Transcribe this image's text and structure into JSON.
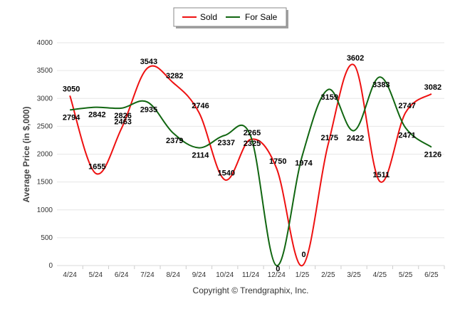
{
  "chart_data": {
    "type": "line",
    "ylabel": "Average Price (in $,000)",
    "ylim": [
      0,
      4000
    ],
    "yticks": [
      0,
      500,
      1000,
      1500,
      2000,
      2500,
      3000,
      3500,
      4000
    ],
    "categories": [
      "4/24",
      "5/24",
      "6/24",
      "7/24",
      "8/24",
      "9/24",
      "10/24",
      "11/24",
      "12/24",
      "1/25",
      "2/25",
      "3/25",
      "4/25",
      "5/25",
      "6/25"
    ],
    "series": [
      {
        "name": "Sold",
        "color": "#ee1111",
        "values": [
          3050,
          1655,
          2463,
          3543,
          3282,
          2746,
          1540,
          2265,
          1750,
          0,
          2175,
          3602,
          1511,
          2747,
          3082
        ]
      },
      {
        "name": "For Sale",
        "color": "#116611",
        "values": [
          2794,
          2842,
          2826,
          2935,
          2379,
          2114,
          2337,
          2325,
          0,
          1974,
          3159,
          2422,
          3383,
          2471,
          2126
        ]
      }
    ],
    "legend_position": "top-center",
    "grid": true
  },
  "footer": {
    "copyright": "Copyright © Trendgraphix, Inc."
  }
}
